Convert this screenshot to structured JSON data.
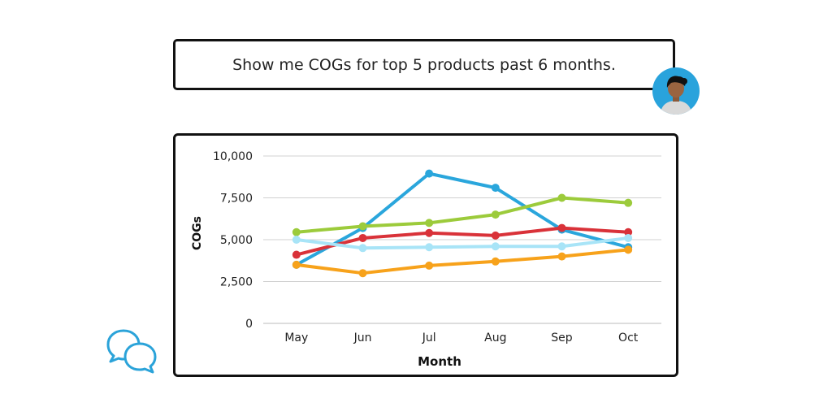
{
  "prompt": {
    "text": "Show me COGs for top 5 products past 6 months."
  },
  "avatar": {
    "icon": "user-avatar-icon",
    "bg_color": "#29a3dc"
  },
  "chat_icon": {
    "icon": "chat-bubbles-icon",
    "color": "#2ba3d9"
  },
  "chart_data": {
    "type": "line",
    "title": "",
    "xlabel": "Month",
    "ylabel": "COGs",
    "categories": [
      "May",
      "Jun",
      "Jul",
      "Aug",
      "Sep",
      "Oct"
    ],
    "ylim": [
      0,
      10000
    ],
    "yticks": [
      0,
      2500,
      5000,
      7500,
      10000
    ],
    "ytick_labels": [
      "0",
      "2,500",
      "5,000",
      "7,500",
      "10,000"
    ],
    "grid": true,
    "legend": "none",
    "series": [
      {
        "color": "#2aa6dc",
        "values": [
          3500,
          5700,
          8950,
          8100,
          5600,
          4550
        ]
      },
      {
        "color": "#9ccb3b",
        "values": [
          5450,
          5800,
          6000,
          6500,
          7500,
          7200
        ]
      },
      {
        "color": "#d93239",
        "values": [
          4100,
          5100,
          5400,
          5250,
          5700,
          5450
        ]
      },
      {
        "color": "#a8e4f7",
        "values": [
          5000,
          4500,
          4550,
          4600,
          4600,
          5100
        ]
      },
      {
        "color": "#f7a21b",
        "values": [
          3500,
          3000,
          3450,
          3700,
          4000,
          4400
        ]
      }
    ]
  }
}
